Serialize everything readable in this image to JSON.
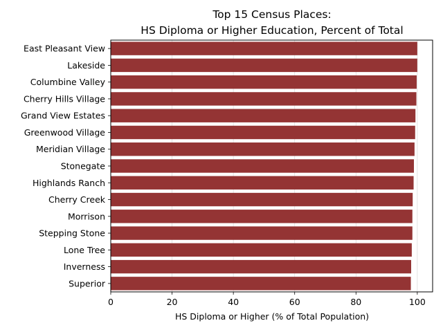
{
  "chart_data": {
    "type": "bar",
    "orientation": "horizontal",
    "title": [
      "Top 15 Census Places:",
      "HS Diploma or Higher Education, Percent of Total"
    ],
    "xlabel": "HS Diploma or Higher (% of Total Population)",
    "ylabel": "",
    "xlim": [
      0,
      105
    ],
    "xticks": [
      0,
      20,
      40,
      60,
      80,
      100
    ],
    "grid": "vertical",
    "bar_color": "#943434",
    "categories": [
      "East Pleasant View",
      "Lakeside",
      "Columbine Valley",
      "Cherry Hills Village",
      "Grand View Estates",
      "Greenwood Village",
      "Meridian Village",
      "Stonegate",
      "Highlands Ranch",
      "Cherry Creek",
      "Morrison",
      "Stepping Stone",
      "Lone Tree",
      "Inverness",
      "Superior"
    ],
    "values": [
      100,
      100,
      99.8,
      99.7,
      99.4,
      99.3,
      99.1,
      98.9,
      98.8,
      98.5,
      98.4,
      98.4,
      98.2,
      98.0,
      97.9
    ]
  }
}
